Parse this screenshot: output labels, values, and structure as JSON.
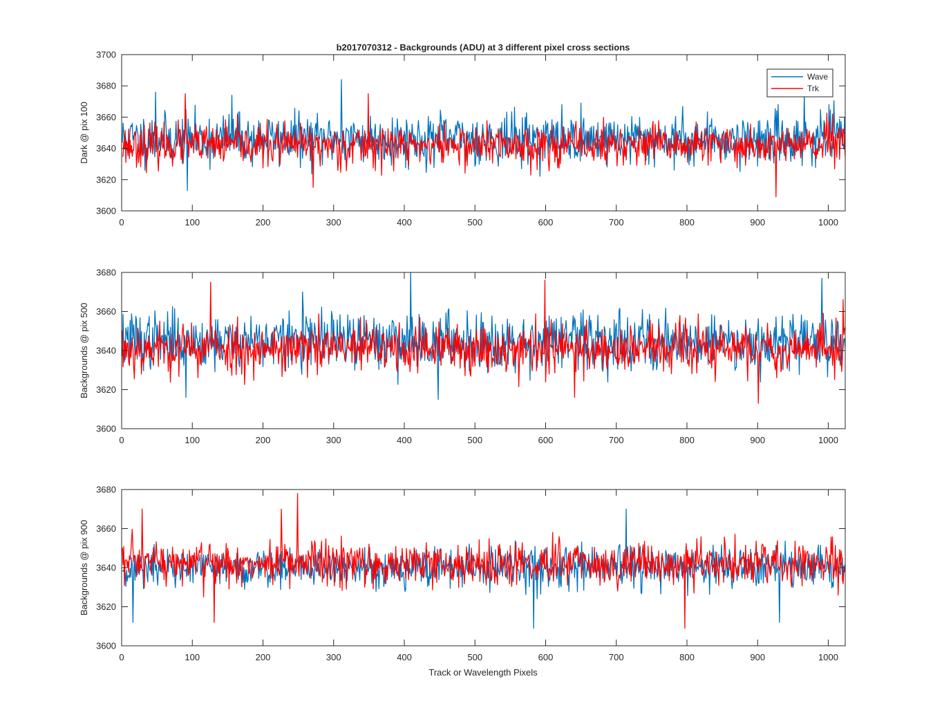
{
  "figure": {
    "title": "b2017070312 - Backgrounds (ADU) at 3 different pixel cross sections",
    "xlabel": "Track or Wavelength Pixels",
    "legend": [
      {
        "name": "Wave",
        "color": "#0072BD"
      },
      {
        "name": "Trk",
        "color": "#FF0000"
      }
    ]
  },
  "chart_data": [
    {
      "type": "line",
      "ylabel": "Dark @ pix 100",
      "xlim": [
        0,
        1024
      ],
      "ylim": [
        3600,
        3700
      ],
      "xticks": [
        "0",
        "100",
        "200",
        "300",
        "400",
        "500",
        "600",
        "700",
        "800",
        "900",
        "1000"
      ],
      "yticks": [
        "3600",
        "3620",
        "3640",
        "3660",
        "3680",
        "3700"
      ],
      "legend_location": "top-right",
      "n_points": 1024,
      "series": [
        {
          "name": "Wave",
          "color": "#0072BD",
          "mean": 3646,
          "spread": 11,
          "min": 3613,
          "max": 3684,
          "seed": 11,
          "peaks": [
            [
              47,
              3676
            ],
            [
              92,
              3613
            ],
            [
              310,
              3684
            ],
            [
              155,
              3674
            ],
            [
              965,
              3675
            ],
            [
              1000,
              3668
            ]
          ]
        },
        {
          "name": "Trk",
          "color": "#FF0000",
          "mean": 3642,
          "spread": 9,
          "min": 3609,
          "max": 3675,
          "seed": 23,
          "peaks": [
            [
              89,
              3675
            ],
            [
              270,
              3615
            ],
            [
              348,
              3675
            ],
            [
              925,
              3609
            ],
            [
              1005,
              3662
            ]
          ]
        }
      ]
    },
    {
      "type": "line",
      "ylabel": "Backgrounds @ pix 500",
      "xlim": [
        0,
        1024
      ],
      "ylim": [
        3600,
        3680
      ],
      "xticks": [
        "0",
        "100",
        "200",
        "300",
        "400",
        "500",
        "600",
        "700",
        "800",
        "900",
        "1000"
      ],
      "yticks": [
        "3600",
        "3620",
        "3640",
        "3660",
        "3680"
      ],
      "n_points": 1024,
      "series": [
        {
          "name": "Wave",
          "color": "#0072BD",
          "mean": 3645,
          "spread": 10,
          "min": 3615,
          "max": 3680,
          "seed": 37,
          "peaks": [
            [
              408,
              3680
            ],
            [
              447,
              3615
            ],
            [
              90,
              3616
            ],
            [
              990,
              3677
            ],
            [
              255,
              3670
            ]
          ]
        },
        {
          "name": "Trk",
          "color": "#FF0000",
          "mean": 3641,
          "spread": 9,
          "min": 3613,
          "max": 3676,
          "seed": 53,
          "peaks": [
            [
              125,
              3675
            ],
            [
              598,
              3676
            ],
            [
              900,
              3613
            ],
            [
              1020,
              3666
            ],
            [
              640,
              3616
            ]
          ]
        }
      ]
    },
    {
      "type": "line",
      "ylabel": "Backgrounds @ pix 900",
      "xlim": [
        0,
        1024
      ],
      "ylim": [
        3600,
        3680
      ],
      "xticks": [
        "0",
        "100",
        "200",
        "300",
        "400",
        "500",
        "600",
        "700",
        "800",
        "900",
        "1000"
      ],
      "yticks": [
        "3600",
        "3620",
        "3640",
        "3660",
        "3680"
      ],
      "n_points": 1024,
      "series": [
        {
          "name": "Wave",
          "color": "#0072BD",
          "mean": 3640,
          "spread": 7,
          "min": 3609,
          "max": 3670,
          "seed": 71,
          "peaks": [
            [
              15,
              3612
            ],
            [
              582,
              3609
            ],
            [
              713,
              3670
            ],
            [
              930,
              3612
            ]
          ]
        },
        {
          "name": "Trk",
          "color": "#FF0000",
          "mean": 3642,
          "spread": 8,
          "min": 3609,
          "max": 3678,
          "seed": 97,
          "peaks": [
            [
              248,
              3678
            ],
            [
              130,
              3612
            ],
            [
              796,
              3609
            ],
            [
              28,
              3670
            ],
            [
              225,
              3670
            ]
          ]
        }
      ]
    }
  ]
}
